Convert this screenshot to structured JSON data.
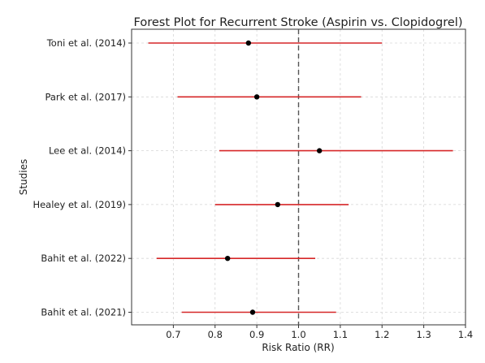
{
  "chart_data": {
    "type": "forest",
    "title": "Forest Plot for Recurrent Stroke (Aspirin vs. Clopidogrel)",
    "xlabel": "Risk Ratio (RR)",
    "ylabel": "Studies",
    "xlim": [
      0.6,
      1.4
    ],
    "xticks": [
      0.7,
      0.8,
      0.9,
      1.0,
      1.1,
      1.2,
      1.3,
      1.4
    ],
    "xtick_labels": [
      "0.7",
      "0.8",
      "0.9",
      "1.0",
      "1.1",
      "1.2",
      "1.3",
      "1.4"
    ],
    "reference_line": 1.0,
    "grid": true,
    "ci_color": "#d62728",
    "point_color": "#000000",
    "studies": [
      {
        "label": "Toni et al. (2014)",
        "rr": 0.88,
        "lower": 0.64,
        "upper": 1.2
      },
      {
        "label": "Park et al. (2017)",
        "rr": 0.9,
        "lower": 0.71,
        "upper": 1.15
      },
      {
        "label": "Lee et al. (2014)",
        "rr": 1.05,
        "lower": 0.81,
        "upper": 1.37
      },
      {
        "label": "Healey et al. (2019)",
        "rr": 0.95,
        "lower": 0.8,
        "upper": 1.12
      },
      {
        "label": "Bahit et al. (2022)",
        "rr": 0.83,
        "lower": 0.66,
        "upper": 1.04
      },
      {
        "label": "Bahit et al. (2021)",
        "rr": 0.89,
        "lower": 0.72,
        "upper": 1.09
      }
    ]
  }
}
